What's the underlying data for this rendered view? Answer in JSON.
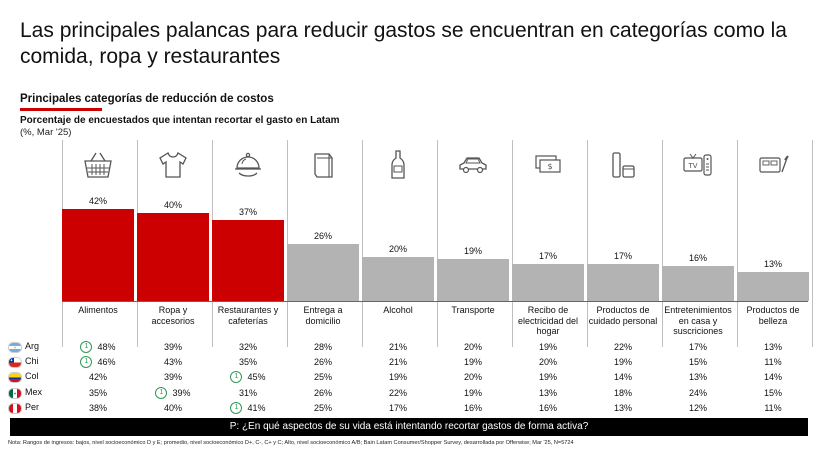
{
  "title": "Las principales palancas para reducir gastos se encuentran en categorías como la comida, ropa y restaurantes",
  "subtitle": "Principales categorías de reducción de costos",
  "description": "Porcentaje de encuestados que intentan recortar el gasto en Latam",
  "unit": "(%, Mar '25)",
  "colors": {
    "highlight": "#cc0000",
    "neutral": "#b3b3b3",
    "accent": "#cc0000",
    "badge": "#2f9a56"
  },
  "chart_data": {
    "type": "bar",
    "title": "Principales categorías de reducción de costos",
    "ylabel": "Porcentaje de encuestados que intentan recortar el gasto en Latam",
    "ylim": [
      0,
      45
    ],
    "grid": false,
    "categories": [
      "Alimentos",
      "Ropa y accesorios",
      "Restaurantes y cafeterías",
      "Entrega a domicilio",
      "Alcohol",
      "Transporte",
      "Recibo de electricidad del hogar",
      "Productos de cuidado personal",
      "Entretenimientos en casa y suscriciones",
      "Productos de belleza"
    ],
    "category_lines": [
      [
        "Alimentos"
      ],
      [
        "Ropa y",
        "accesorios"
      ],
      [
        "Restaurantes y",
        "cafeterías"
      ],
      [
        "Entrega a",
        "domicilio"
      ],
      [
        "Alcohol"
      ],
      [
        "Transporte"
      ],
      [
        "Recibo de",
        "electricidad del",
        "hogar"
      ],
      [
        "Productos de",
        "cuidado personal"
      ],
      [
        "Entretenimientos",
        "en casa y",
        "suscriciones"
      ],
      [
        "Productos de",
        "belleza"
      ]
    ],
    "icons": [
      "basket-icon",
      "shirt-icon",
      "cloche-icon",
      "bag-icon",
      "bottle-icon",
      "car-icon",
      "bill-icon",
      "cosmetics-icon",
      "tv-remote-icon",
      "makeup-icon"
    ],
    "values": [
      42,
      40,
      37,
      26,
      20,
      19,
      17,
      17,
      16,
      13
    ],
    "value_labels": [
      "42%",
      "40%",
      "37%",
      "26%",
      "20%",
      "19%",
      "17%",
      "17%",
      "16%",
      "13%"
    ],
    "highlighted": [
      true,
      true,
      true,
      false,
      false,
      false,
      false,
      false,
      false,
      false
    ],
    "table": {
      "rows": [
        {
          "country": "Arg",
          "flag": "ar",
          "values": [
            "48%",
            "39%",
            "32%",
            "28%",
            "21%",
            "20%",
            "19%",
            "22%",
            "17%",
            "13%"
          ],
          "ranked_first": [
            0
          ]
        },
        {
          "country": "Chi",
          "flag": "cl",
          "values": [
            "46%",
            "43%",
            "35%",
            "26%",
            "21%",
            "19%",
            "20%",
            "19%",
            "15%",
            "11%"
          ],
          "ranked_first": [
            0
          ]
        },
        {
          "country": "Col",
          "flag": "co",
          "values": [
            "42%",
            "39%",
            "45%",
            "25%",
            "19%",
            "20%",
            "19%",
            "14%",
            "13%",
            "14%"
          ],
          "ranked_first": [
            2
          ]
        },
        {
          "country": "Mex",
          "flag": "mx",
          "values": [
            "35%",
            "39%",
            "31%",
            "26%",
            "22%",
            "19%",
            "13%",
            "18%",
            "24%",
            "15%"
          ],
          "ranked_first": [
            1
          ]
        },
        {
          "country": "Per",
          "flag": "pe",
          "values": [
            "38%",
            "40%",
            "41%",
            "25%",
            "17%",
            "16%",
            "16%",
            "13%",
            "12%",
            "11%"
          ],
          "ranked_first": [
            2
          ]
        }
      ],
      "badge_label": "1"
    }
  },
  "question": "P: ¿En qué aspectos de su vida está intentando recortar gastos de forma activa?",
  "note": "Nota: Rangos de ingresos: bajos, nivel socioeconómico D y E; promedio, nivel socioeconómico D+, C-, C+ y C; Alto, nivel socioeconómico A/B; Bain Latam Consumer/Shopper Survey, desarrollada por Offerwise; Mar '25, N=5724"
}
